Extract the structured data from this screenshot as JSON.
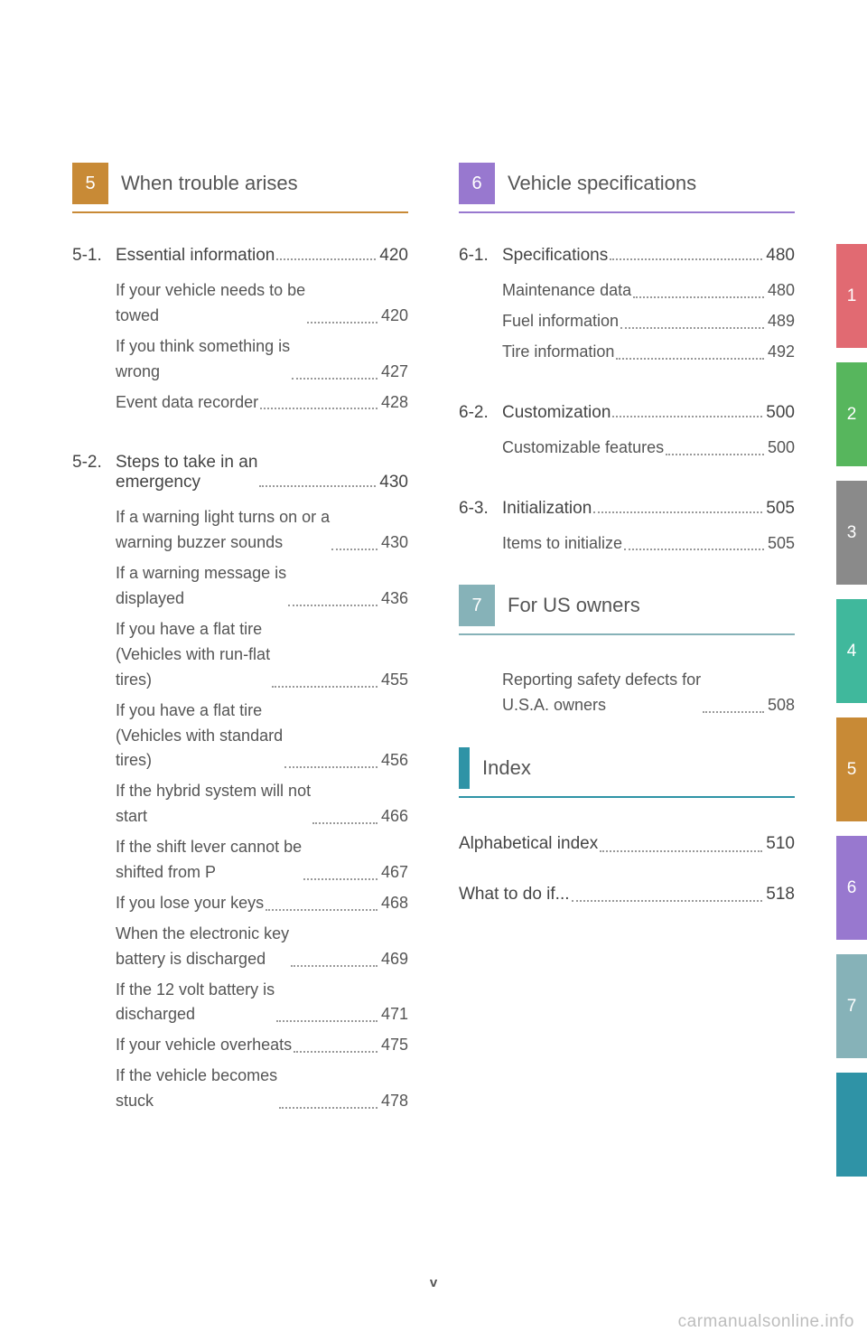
{
  "colors": {
    "tab1": "#e16a72",
    "tab2": "#57b65d",
    "tab3": "#8a8a8a",
    "tab4": "#40b89c",
    "tab5": "#c88a36",
    "tab6": "#9878cf",
    "tab7": "#86b2b8",
    "tab8": "#2f93a6"
  },
  "tabs": [
    "1",
    "2",
    "3",
    "4",
    "5",
    "6",
    "7",
    ""
  ],
  "left": {
    "section": {
      "num": "5",
      "title": "When trouble arises",
      "color": "#c88a36"
    },
    "groups": [
      {
        "num": "5-1.",
        "title": "Essential information",
        "page": "420",
        "entries": [
          {
            "text": "If your vehicle needs to be\n   towed",
            "page": "420"
          },
          {
            "text": "If you think something is\n   wrong",
            "page": "427"
          },
          {
            "text": "Event data recorder",
            "page": "428"
          }
        ]
      },
      {
        "num": "5-2.",
        "title": "Steps to take in an\nemergency",
        "page": "430",
        "entries": [
          {
            "text": "If a warning light turns on or a\n   warning buzzer sounds",
            "page": "430"
          },
          {
            "text": "If a warning message is\n   displayed",
            "page": "436"
          },
          {
            "text": "If you have a flat tire\n   (Vehicles with run-flat\n   tires)",
            "page": "455"
          },
          {
            "text": "If you have a flat tire\n   (Vehicles with standard\n   tires)",
            "page": "456"
          },
          {
            "text": "If the hybrid system will not\n   start",
            "page": "466"
          },
          {
            "text": "If the shift lever cannot be\n   shifted from P",
            "page": "467"
          },
          {
            "text": "If you lose your keys",
            "page": "468"
          },
          {
            "text": "When the electronic key\n   battery is discharged",
            "page": "469"
          },
          {
            "text": "If the 12 volt battery is\n   discharged",
            "page": "471"
          },
          {
            "text": "If your vehicle overheats",
            "page": "475"
          },
          {
            "text": "If the vehicle becomes\n   stuck",
            "page": "478"
          }
        ]
      }
    ]
  },
  "right": {
    "sections": [
      {
        "num": "6",
        "title": "Vehicle specifications",
        "color": "#9878cf",
        "style": "num",
        "groups": [
          {
            "num": "6-1.",
            "title": "Specifications",
            "page": "480",
            "entries": [
              {
                "text": "Maintenance data",
                "page": "480"
              },
              {
                "text": "Fuel information",
                "page": "489"
              },
              {
                "text": "Tire information",
                "page": "492"
              }
            ]
          },
          {
            "num": "6-2.",
            "title": "Customization",
            "page": "500",
            "entries": [
              {
                "text": "Customizable features",
                "page": "500"
              }
            ]
          },
          {
            "num": "6-3.",
            "title": "Initialization",
            "page": "505",
            "entries": [
              {
                "text": "Items to initialize",
                "page": "505"
              }
            ]
          }
        ]
      },
      {
        "num": "7",
        "title": "For US owners",
        "color": "#86b2b8",
        "style": "num",
        "groups": [
          {
            "num": "",
            "title": "",
            "page": "",
            "entries": [
              {
                "text": "Reporting safety defects for\n   U.S.A. owners",
                "page": "508"
              }
            ]
          }
        ]
      },
      {
        "num": "",
        "title": "Index",
        "color": "#2f93a6",
        "style": "bar",
        "groups": [],
        "flatEntries": [
          {
            "text": "Alphabetical index",
            "page": "510"
          },
          {
            "text": "What to do if...",
            "page": "518"
          }
        ]
      }
    ]
  },
  "footer": {
    "pageNumber": "v",
    "watermark": "carmanualsonline.info"
  }
}
